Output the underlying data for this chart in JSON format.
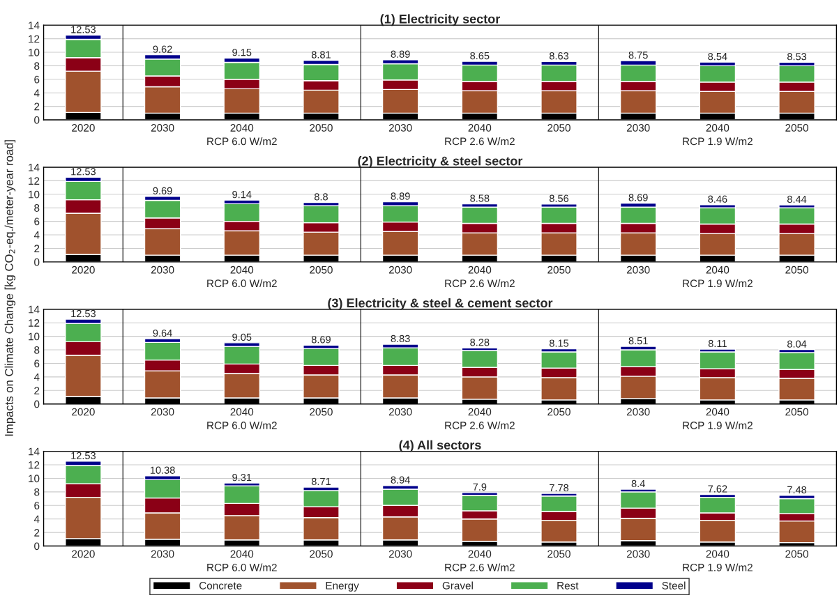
{
  "chart_data": [
    {
      "type": "bar",
      "stacked": true,
      "title": "(1) Electricity sector",
      "ylabel": "Impacts on Climate Change [kg CO$_{2}$-eq./meter-year road]",
      "categories": [
        "2020",
        "2030",
        "2040",
        "2050",
        "2030",
        "2040",
        "2050",
        "2030",
        "2040",
        "2050"
      ],
      "series": [
        {
          "color": "#000000",
          "values": [
            1.1,
            1.0,
            1.0,
            1.0,
            1.0,
            1.0,
            1.0,
            1.0,
            1.0,
            1.0
          ]
        },
        {
          "color": "#a0522d",
          "values": [
            6.1,
            3.9,
            3.6,
            3.4,
            3.5,
            3.3,
            3.3,
            3.3,
            3.2,
            3.2
          ]
        },
        {
          "color": "#8b0016",
          "values": [
            2.0,
            1.6,
            1.4,
            1.4,
            1.4,
            1.4,
            1.4,
            1.4,
            1.4,
            1.4
          ]
        },
        {
          "color": "#4caf50",
          "values": [
            2.7,
            2.5,
            2.5,
            2.4,
            2.4,
            2.4,
            2.4,
            2.4,
            2.4,
            2.4
          ]
        },
        {
          "color": "#00008b",
          "values": [
            0.63,
            0.62,
            0.65,
            0.61,
            0.59,
            0.55,
            0.53,
            0.65,
            0.54,
            0.53
          ]
        }
      ],
      "totals": [
        "12.53",
        "9.62",
        "9.15",
        "8.81",
        "8.89",
        "8.65",
        "8.63",
        "8.75",
        "8.54",
        "8.53"
      ],
      "annotations": [
        "RCP 6.0 W/m2",
        "RCP 2.6 W/m2",
        "RCP 1.9 W/m2"
      ],
      "ylim": [
        0,
        14
      ],
      "yticks": [
        0,
        2,
        4,
        6,
        8,
        10,
        12,
        14
      ],
      "grid": "y"
    },
    {
      "type": "bar",
      "stacked": true,
      "title": "(2) Electricity & steel sector",
      "categories": [
        "2020",
        "2030",
        "2040",
        "2050",
        "2030",
        "2040",
        "2050",
        "2030",
        "2040",
        "2050"
      ],
      "series": [
        {
          "color": "#000000",
          "values": [
            1.1,
            1.0,
            1.0,
            1.0,
            1.0,
            1.0,
            1.0,
            1.0,
            1.0,
            1.0
          ]
        },
        {
          "color": "#a0522d",
          "values": [
            6.1,
            3.9,
            3.6,
            3.4,
            3.5,
            3.3,
            3.3,
            3.3,
            3.2,
            3.2
          ]
        },
        {
          "color": "#8b0016",
          "values": [
            2.0,
            1.6,
            1.4,
            1.4,
            1.4,
            1.4,
            1.4,
            1.4,
            1.4,
            1.4
          ]
        },
        {
          "color": "#4caf50",
          "values": [
            2.7,
            2.6,
            2.6,
            2.5,
            2.4,
            2.4,
            2.4,
            2.4,
            2.4,
            2.4
          ]
        },
        {
          "color": "#00008b",
          "values": [
            0.63,
            0.59,
            0.54,
            0.5,
            0.59,
            0.48,
            0.46,
            0.59,
            0.46,
            0.44
          ]
        }
      ],
      "totals": [
        "12.53",
        "9.69",
        "9.14",
        "8.8",
        "8.89",
        "8.58",
        "8.56",
        "8.69",
        "8.46",
        "8.44"
      ],
      "annotations": [
        "RCP 6.0 W/m2",
        "RCP 2.6 W/m2",
        "RCP 1.9 W/m2"
      ],
      "ylim": [
        0,
        14
      ],
      "yticks": [
        0,
        2,
        4,
        6,
        8,
        10,
        12,
        14
      ],
      "grid": "y"
    },
    {
      "type": "bar",
      "stacked": true,
      "title": "(3) Electricity & steel & cement sector",
      "categories": [
        "2020",
        "2030",
        "2040",
        "2050",
        "2030",
        "2040",
        "2050",
        "2030",
        "2040",
        "2050"
      ],
      "series": [
        {
          "color": "#000000",
          "values": [
            1.1,
            0.9,
            0.9,
            0.9,
            0.9,
            0.7,
            0.6,
            0.8,
            0.6,
            0.6
          ]
        },
        {
          "color": "#a0522d",
          "values": [
            6.1,
            4.0,
            3.6,
            3.4,
            3.4,
            3.3,
            3.3,
            3.3,
            3.3,
            3.2
          ]
        },
        {
          "color": "#8b0016",
          "values": [
            2.0,
            1.6,
            1.4,
            1.4,
            1.4,
            1.4,
            1.4,
            1.4,
            1.3,
            1.3
          ]
        },
        {
          "color": "#4caf50",
          "values": [
            2.7,
            2.6,
            2.6,
            2.5,
            2.6,
            2.5,
            2.4,
            2.5,
            2.5,
            2.5
          ]
        },
        {
          "color": "#00008b",
          "values": [
            0.63,
            0.54,
            0.55,
            0.49,
            0.53,
            0.38,
            0.45,
            0.51,
            0.41,
            0.44
          ]
        }
      ],
      "totals": [
        "12.53",
        "9.64",
        "9.05",
        "8.69",
        "8.83",
        "8.28",
        "8.15",
        "8.51",
        "8.11",
        "8.04"
      ],
      "annotations": [
        "RCP 6.0 W/m2",
        "RCP 2.6 W/m2",
        "RCP 1.9 W/m2"
      ],
      "ylim": [
        0,
        14
      ],
      "yticks": [
        0,
        2,
        4,
        6,
        8,
        10,
        12,
        14
      ],
      "grid": "y"
    },
    {
      "type": "bar",
      "stacked": true,
      "title": "(4) All sectors",
      "categories": [
        "2020",
        "2030",
        "2040",
        "2050",
        "2030",
        "2040",
        "2050",
        "2030",
        "2040",
        "2050"
      ],
      "series": [
        {
          "name": "Concrete",
          "color": "#000000",
          "values": [
            1.1,
            1.0,
            0.9,
            0.9,
            0.9,
            0.7,
            0.6,
            0.8,
            0.6,
            0.5
          ]
        },
        {
          "name": "Energy",
          "color": "#a0522d",
          "values": [
            6.1,
            3.9,
            3.6,
            3.3,
            3.4,
            3.3,
            3.2,
            3.3,
            3.2,
            3.2
          ]
        },
        {
          "name": "Gravel",
          "color": "#8b0016",
          "values": [
            2.0,
            2.2,
            1.8,
            1.6,
            1.7,
            1.2,
            1.3,
            1.5,
            1.1,
            1.1
          ]
        },
        {
          "name": "Rest",
          "color": "#4caf50",
          "values": [
            2.7,
            2.7,
            2.6,
            2.4,
            2.4,
            2.3,
            2.3,
            2.4,
            2.3,
            2.2
          ]
        },
        {
          "name": "Steel",
          "color": "#00008b",
          "values": [
            0.63,
            0.58,
            0.41,
            0.51,
            0.54,
            0.4,
            0.38,
            0.4,
            0.42,
            0.48
          ]
        }
      ],
      "totals": [
        "12.53",
        "10.38",
        "9.31",
        "8.71",
        "8.94",
        "7.9",
        "7.78",
        "8.4",
        "7.62",
        "7.48"
      ],
      "annotations": [
        "RCP 6.0 W/m2",
        "RCP 2.6 W/m2",
        "RCP 1.9 W/m2"
      ],
      "ylim": [
        0,
        14
      ],
      "yticks": [
        0,
        2,
        4,
        6,
        8,
        10,
        12,
        14
      ],
      "grid": "y",
      "legend": "bottom"
    }
  ]
}
